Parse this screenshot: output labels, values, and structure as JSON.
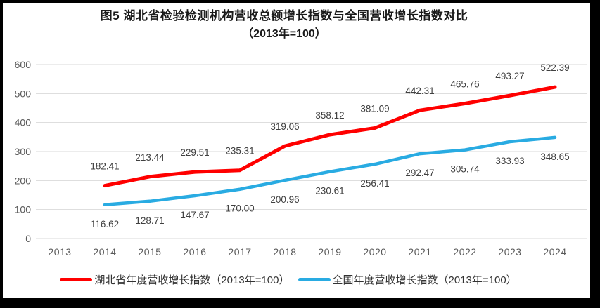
{
  "title": {
    "line1": "图5 湖北省检验检测机构营收总额增长指数与全国营收增长指数对比",
    "line2": "（2013年=100）"
  },
  "chart_data": {
    "type": "line",
    "categories": [
      2013,
      2014,
      2015,
      2016,
      2017,
      2018,
      2019,
      2020,
      2021,
      2022,
      2023,
      2024
    ],
    "series": [
      {
        "name": "湖北省年度营收增长指数（2013年=100）",
        "color": "#FF0000",
        "label_position": "above",
        "values": [
          null,
          182.41,
          213.44,
          229.51,
          235.31,
          319.06,
          358.12,
          381.09,
          442.31,
          465.76,
          493.27,
          522.39
        ]
      },
      {
        "name": "全国年度营收增长指数（2013年=100）",
        "color": "#29ABE2",
        "label_position": "below",
        "values": [
          null,
          116.62,
          128.71,
          147.67,
          170.0,
          200.96,
          230.61,
          256.41,
          292.47,
          305.74,
          333.93,
          348.65
        ]
      }
    ],
    "ylim": [
      0,
      600
    ],
    "ytick_step": 100,
    "yticks": [
      0,
      100,
      200,
      300,
      400,
      500,
      600
    ],
    "grid": "horizontal-only",
    "legend_position": "bottom",
    "value_label_decimals": 2
  },
  "colors": {
    "gridline": "#D9D9D9",
    "axis_text": "#595959",
    "value_label_text": "#404040",
    "title_text": "#1A1A1A",
    "frame_border": "#000000",
    "background": "#FFFFFF"
  }
}
